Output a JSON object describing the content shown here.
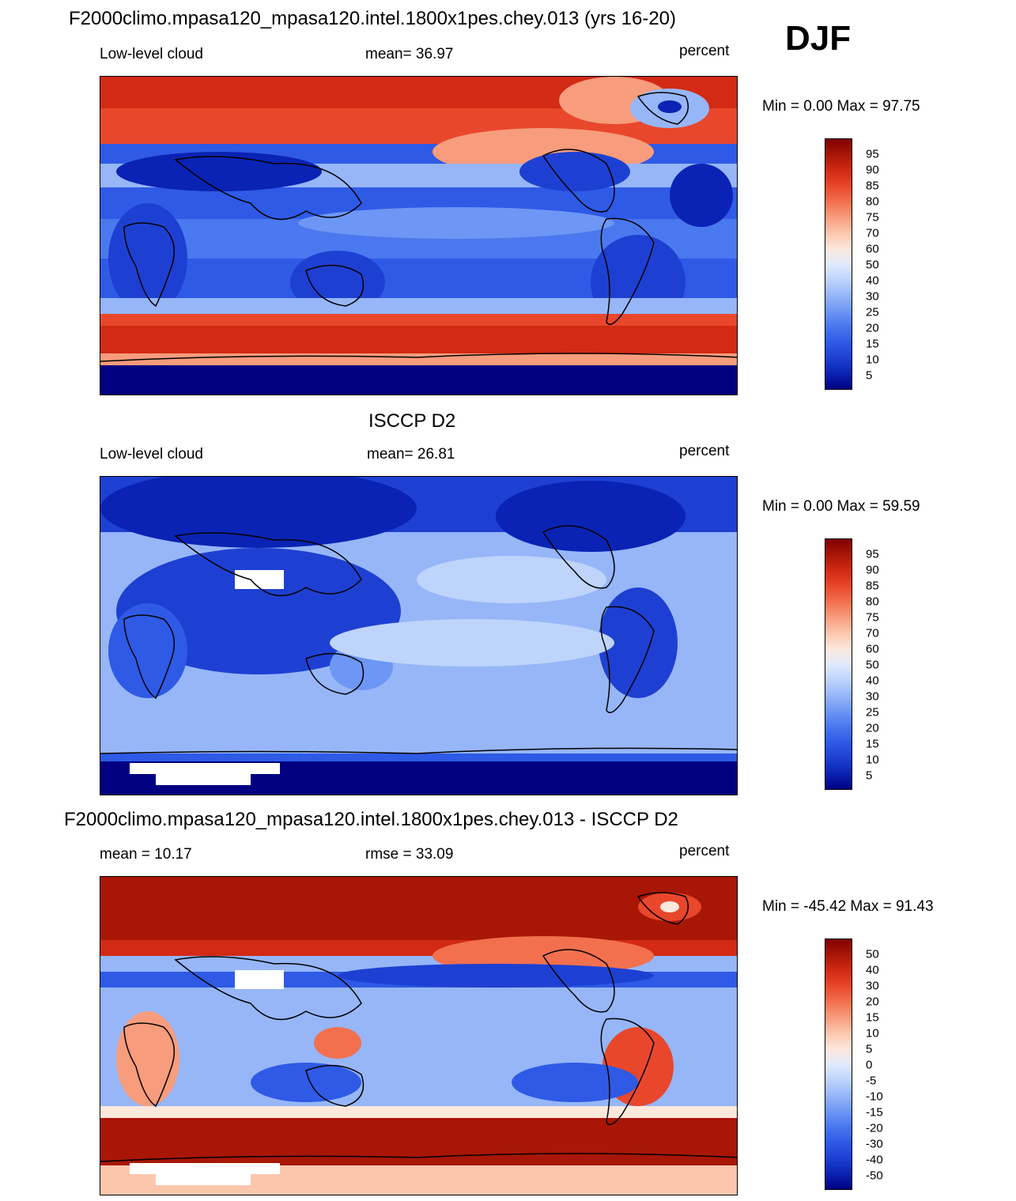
{
  "season": "DJF",
  "colors": {
    "red_scale": [
      "#000080",
      "#0a23b4",
      "#1e40d2",
      "#2e5ae6",
      "#4a78ee",
      "#6e96f4",
      "#96b6f8",
      "#bed4fb",
      "#e0ebfd",
      "#fde8dc",
      "#fbc6ac",
      "#f79c7c",
      "#f2704e",
      "#e8472c",
      "#d22a14",
      "#a81606",
      "#800000"
    ],
    "coast": "#000000",
    "missing": "#ffffff"
  },
  "panels": [
    {
      "id": "model",
      "title": "F2000climo.mpasa120_mpasa120.intel.1800x1pes.chey.013 (yrs 16-20)",
      "left_label": "Low-level cloud",
      "center_label": "mean=  36.97",
      "units": "percent",
      "minmax": "Min =   0.00 Max =  97.75",
      "legend_labels": [
        "95",
        "90",
        "85",
        "80",
        "75",
        "70",
        "60",
        "50",
        "40",
        "30",
        "25",
        "20",
        "15",
        "10",
        "5"
      ]
    },
    {
      "id": "obs",
      "title": "ISCCP D2",
      "left_label": "Low-level cloud",
      "center_label": "mean=  26.81",
      "units": "percent",
      "minmax": "Min =   0.00 Max =  59.59",
      "legend_labels": [
        "95",
        "90",
        "85",
        "80",
        "75",
        "70",
        "60",
        "50",
        "40",
        "30",
        "25",
        "20",
        "15",
        "10",
        "5"
      ]
    },
    {
      "id": "diff",
      "title": "F2000climo.mpasa120_mpasa120.intel.1800x1pes.chey.013 - ISCCP D2",
      "left_label": "mean =  10.17",
      "center_label": "rmse =  33.09",
      "units": "percent",
      "minmax": "Min = -45.42 Max =  91.43",
      "legend_labels": [
        "50",
        "40",
        "30",
        "20",
        "15",
        "10",
        "5",
        "0",
        "-5",
        "-10",
        "-15",
        "-20",
        "-30",
        "-40",
        "-50"
      ]
    }
  ]
}
